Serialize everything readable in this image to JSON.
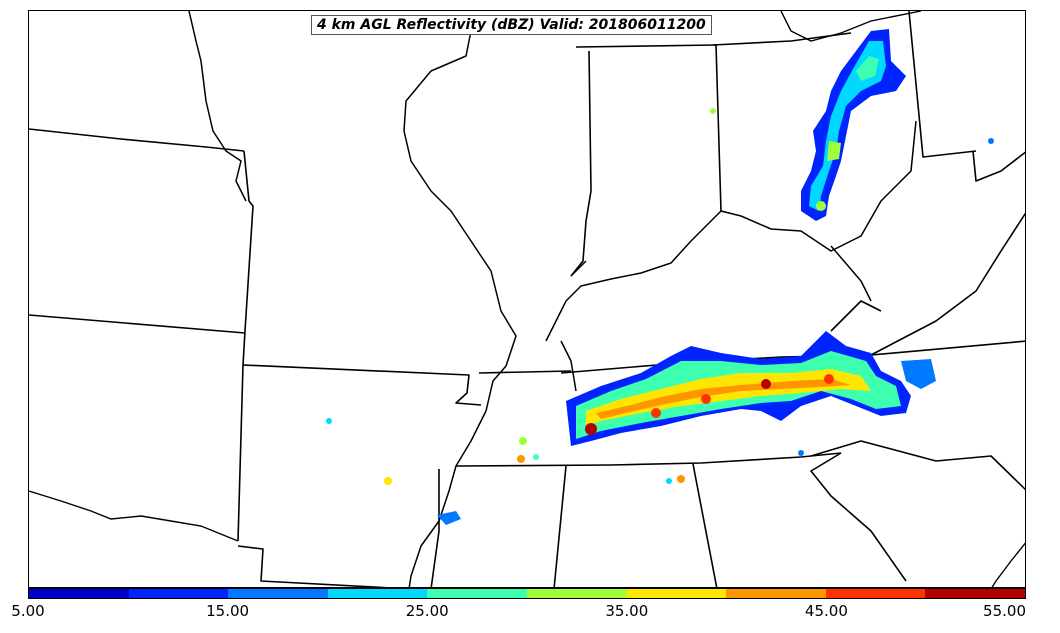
{
  "title": "4 km AGL Reflectivity (dBZ) Valid: 201806011200",
  "colorbar": {
    "colors": [
      "#0000c8",
      "#0024ff",
      "#0078ff",
      "#00d8ff",
      "#3cffb0",
      "#a0ff3c",
      "#ffe600",
      "#ff9600",
      "#ff3200",
      "#b40000"
    ],
    "ticks": [
      "5.00",
      "15.00",
      "25.00",
      "35.00",
      "45.00",
      "55.00"
    ],
    "range": [
      5,
      55
    ]
  },
  "map": {
    "region": "Central / Southeastern United States",
    "line_color": "#000000",
    "features": [
      "state-borders",
      "rivers",
      "coastline"
    ],
    "precip_areas": [
      "ohio-storm-band",
      "tennessee-storm-line",
      "arkansas-cells",
      "mississippi-cells"
    ]
  }
}
